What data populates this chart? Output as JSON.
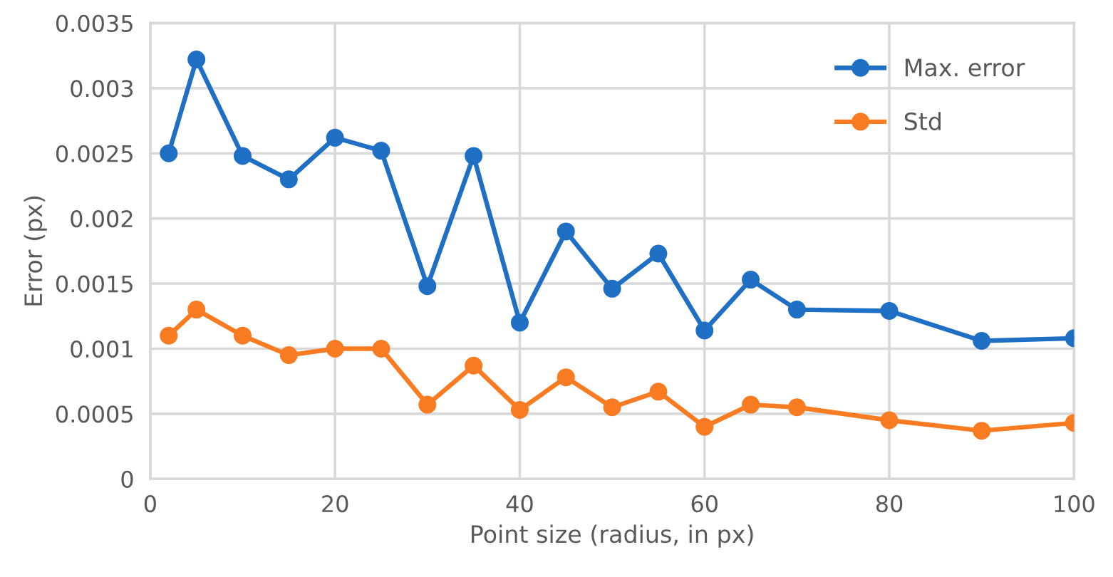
{
  "chart_data": {
    "type": "line",
    "xlabel": "Point size (radius, in px)",
    "ylabel": "Error (px)",
    "x": [
      2,
      5,
      10,
      15,
      20,
      25,
      30,
      35,
      40,
      45,
      50,
      55,
      60,
      65,
      70,
      80,
      90,
      100
    ],
    "series": [
      {
        "name": "Max. error",
        "color": "#1f6fc5",
        "values": [
          0.0025,
          0.00322,
          0.00248,
          0.0023,
          0.00262,
          0.00252,
          0.00148,
          0.00248,
          0.0012,
          0.0019,
          0.00146,
          0.00173,
          0.00114,
          0.00153,
          0.0013,
          0.00129,
          0.00106,
          0.00108
        ]
      },
      {
        "name": "Std",
        "color": "#f97b22",
        "values": [
          0.0011,
          0.0013,
          0.0011,
          0.00095,
          0.001,
          0.001,
          0.00057,
          0.00087,
          0.00053,
          0.00078,
          0.00055,
          0.00067,
          0.0004,
          0.00057,
          0.00055,
          0.00045,
          0.00037,
          0.00043
        ]
      }
    ],
    "xlim": [
      0,
      100
    ],
    "xticks": [
      0,
      20,
      40,
      60,
      80,
      100
    ],
    "ylim": [
      0,
      0.0035
    ],
    "yticks": [
      {
        "value": 0,
        "label": "0"
      },
      {
        "value": 0.0005,
        "label": "0.0005"
      },
      {
        "value": 0.001,
        "label": "0.001"
      },
      {
        "value": 0.0015,
        "label": "0.0015"
      },
      {
        "value": 0.002,
        "label": "0.002"
      },
      {
        "value": 0.0025,
        "label": "0.0025"
      },
      {
        "value": 0.003,
        "label": "0.003"
      },
      {
        "value": 0.0035,
        "label": "0.0035"
      }
    ],
    "grid": true,
    "legend": "top right",
    "marker": "circle",
    "line_style": "solid"
  }
}
